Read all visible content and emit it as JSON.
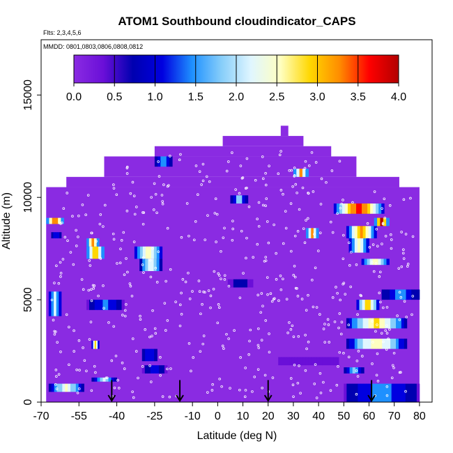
{
  "chart_data": {
    "type": "heatmap",
    "title": "ATOM1 Southbound cloudindicator_CAPS",
    "subtitle_flights": "Flts: 2,3,4,5,6",
    "subtitle_dates": "MMDD: 0801,0803,0806,0808,0812",
    "xlabel": "Latitude (deg N)",
    "ylabel": "Altitude (m)",
    "xlim": [
      -70,
      85
    ],
    "ylim": [
      0,
      17700
    ],
    "x_ticks": [
      -70,
      -55,
      -40,
      -25,
      -10,
      0,
      10,
      20,
      30,
      40,
      50,
      60,
      70,
      80
    ],
    "y_ticks": [
      0,
      5000,
      10000,
      15000
    ],
    "colorbar": {
      "min": 0.0,
      "max": 4.0,
      "tick_values": [
        0.0,
        0.5,
        1.0,
        1.5,
        2.0,
        2.5,
        3.0,
        3.5,
        4.0
      ],
      "tick_labels": [
        "0.0",
        "0.5",
        "1.0",
        "1.5",
        "2.0",
        "2.5",
        "3.0",
        "3.5",
        "4.0"
      ],
      "colors": [
        "#8a2be2",
        "#6a0fd8",
        "#0000b0",
        "#0000e0",
        "#1e90ff",
        "#87cefa",
        "#e0f6ff",
        "#ffffc0",
        "#ffd700",
        "#ff8c00",
        "#ff0000",
        "#b20000"
      ]
    },
    "background_value": 0.0,
    "coverage": [
      {
        "lat_min": -68,
        "lat_max": 80,
        "alt_min": 0,
        "alt_max": 10500
      },
      {
        "lat_min": -60,
        "lat_max": 72,
        "alt_min": 10500,
        "alt_max": 11000
      },
      {
        "lat_min": -45,
        "lat_max": 55,
        "alt_min": 11000,
        "alt_max": 12000
      },
      {
        "lat_min": -25,
        "lat_max": 45,
        "alt_min": 12000,
        "alt_max": 12500
      },
      {
        "lat_min": 2,
        "lat_max": 34,
        "alt_min": 12500,
        "alt_max": 13000
      },
      {
        "lat_min": 25,
        "lat_max": 28,
        "alt_min": 13000,
        "alt_max": 13500
      }
    ],
    "cloud_features": [
      {
        "lat_min": -68,
        "lat_max": -61,
        "alt_min": 8700,
        "alt_max": 9000,
        "peak": 3.5
      },
      {
        "lat_min": -66,
        "lat_max": -62,
        "alt_min": 8000,
        "alt_max": 8300,
        "peak": 1.3
      },
      {
        "lat_min": -67,
        "lat_max": -62,
        "alt_min": 4200,
        "alt_max": 5400,
        "peak": 2.2
      },
      {
        "lat_min": -67,
        "lat_max": -53,
        "alt_min": 500,
        "alt_max": 900,
        "peak": 2.4
      },
      {
        "lat_min": -52,
        "lat_max": -45,
        "alt_min": 7000,
        "alt_max": 7600,
        "peak": 3.1
      },
      {
        "lat_min": -52,
        "lat_max": -47,
        "alt_min": 7600,
        "alt_max": 8000,
        "peak": 3.3
      },
      {
        "lat_min": -52,
        "lat_max": -37,
        "alt_min": 4500,
        "alt_max": 5000,
        "peak": 1.5
      },
      {
        "lat_min": -50,
        "lat_max": -47,
        "alt_min": 2600,
        "alt_max": 3000,
        "peak": 2.8
      },
      {
        "lat_min": -50,
        "lat_max": -40,
        "alt_min": 1000,
        "alt_max": 1200,
        "peak": 2.2
      },
      {
        "lat_min": -33,
        "lat_max": -22,
        "alt_min": 7000,
        "alt_max": 7600,
        "peak": 2.6
      },
      {
        "lat_min": -31,
        "lat_max": -22,
        "alt_min": 6400,
        "alt_max": 7000,
        "peak": 2.3
      },
      {
        "lat_min": -30,
        "lat_max": -24,
        "alt_min": 2000,
        "alt_max": 2600,
        "peak": 1.3
      },
      {
        "lat_min": -30,
        "lat_max": -20,
        "alt_min": 1400,
        "alt_max": 1800,
        "peak": 1.3
      },
      {
        "lat_min": -25,
        "lat_max": -18,
        "alt_min": 11500,
        "alt_max": 12000,
        "peak": 1.8
      },
      {
        "lat_min": 4,
        "lat_max": 14,
        "alt_min": 5600,
        "alt_max": 6000,
        "peak": 0.9
      },
      {
        "lat_min": 5,
        "lat_max": 12,
        "alt_min": 9700,
        "alt_max": 10100,
        "peak": 1.9
      },
      {
        "lat_min": 30,
        "lat_max": 36,
        "alt_min": 11000,
        "alt_max": 11400,
        "peak": 3.0
      },
      {
        "lat_min": 35,
        "lat_max": 40,
        "alt_min": 8000,
        "alt_max": 8500,
        "peak": 3.0
      },
      {
        "lat_min": 46,
        "lat_max": 66,
        "alt_min": 9200,
        "alt_max": 9700,
        "peak": 3.7
      },
      {
        "lat_min": 51,
        "lat_max": 63,
        "alt_min": 8000,
        "alt_max": 8600,
        "peak": 3.2
      },
      {
        "lat_min": 52,
        "lat_max": 60,
        "alt_min": 7300,
        "alt_max": 8000,
        "peak": 2.5
      },
      {
        "lat_min": 62,
        "lat_max": 68,
        "alt_min": 8600,
        "alt_max": 9000,
        "peak": 3.7
      },
      {
        "lat_min": 57,
        "lat_max": 68,
        "alt_min": 6700,
        "alt_max": 7000,
        "peak": 2.8
      },
      {
        "lat_min": 65,
        "lat_max": 80,
        "alt_min": 5000,
        "alt_max": 5500,
        "peak": 1.6
      },
      {
        "lat_min": 55,
        "lat_max": 64,
        "alt_min": 4500,
        "alt_max": 5000,
        "peak": 2.9
      },
      {
        "lat_min": 51,
        "lat_max": 75,
        "alt_min": 3600,
        "alt_max": 4100,
        "peak": 2.9
      },
      {
        "lat_min": 51,
        "lat_max": 75,
        "alt_min": 2600,
        "alt_max": 3100,
        "peak": 2.7
      },
      {
        "lat_min": 50,
        "lat_max": 58,
        "alt_min": 1400,
        "alt_max": 1700,
        "peak": 1.8
      },
      {
        "lat_min": 50,
        "lat_max": 80,
        "alt_min": 0,
        "alt_max": 900,
        "peak": 1.6
      },
      {
        "lat_min": 24,
        "lat_max": 48,
        "alt_min": 1800,
        "alt_max": 2200,
        "peak": 0.6
      }
    ],
    "markers": [
      {
        "lat": -42,
        "alt_top": 600,
        "type": "arrow"
      },
      {
        "lat": -15,
        "alt_top": 600,
        "type": "arrow"
      },
      {
        "lat": 20,
        "alt_top": 600,
        "type": "arrow"
      },
      {
        "lat": 61,
        "alt_top": 600,
        "type": "arrow"
      }
    ],
    "grid": false,
    "legend": "colorbar-top-inside"
  }
}
